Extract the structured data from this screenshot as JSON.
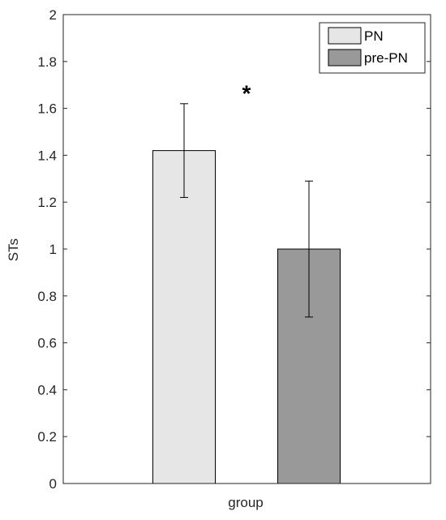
{
  "chart_data": {
    "type": "bar",
    "title": "",
    "xlabel": "group",
    "ylabel": "STs",
    "ylim": [
      0,
      2
    ],
    "yticks": [
      0,
      0.2,
      0.4,
      0.6,
      0.8,
      1,
      1.2,
      1.4,
      1.6,
      1.8,
      2
    ],
    "ytick_labels": [
      "0",
      "0.2",
      "0.4",
      "0.6",
      "0.8",
      "1",
      "1.2",
      "1.4",
      "1.6",
      "1.8",
      "2"
    ],
    "grid": false,
    "legend_position": "top-right",
    "series": [
      {
        "name": "PN",
        "value": 1.42,
        "error": 0.2,
        "color": "#e6e6e6"
      },
      {
        "name": "pre-PN",
        "value": 1.0,
        "error": 0.29,
        "color": "#999999"
      }
    ],
    "annotations": [
      {
        "text": "*",
        "x_between": [
          "PN",
          "pre-PN"
        ],
        "y": 1.68
      }
    ]
  }
}
